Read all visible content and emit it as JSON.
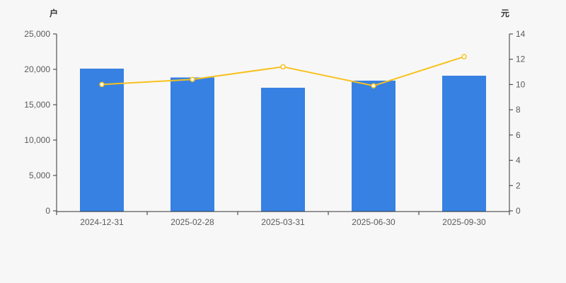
{
  "chart": {
    "left_unit": "户",
    "right_unit": "元"
  },
  "colors": {
    "background": "#f7f7f7",
    "bar": "#3781e3",
    "line": "#f8c11c",
    "marker_fill": "#ffffff",
    "axis": "#333333",
    "tick_text": "#5a5a5a"
  },
  "chart_data": {
    "type": "bar",
    "categories": [
      "2024-12-31",
      "2025-02-28",
      "2025-03-31",
      "2025-06-30",
      "2025-09-30"
    ],
    "series": [
      {
        "name": "bar-series",
        "type": "bar",
        "axis": "left",
        "color": "#3781e3",
        "values": [
          20100,
          18850,
          17400,
          18400,
          19100
        ]
      },
      {
        "name": "line-series",
        "type": "line",
        "axis": "right",
        "color": "#f8c11c",
        "values": [
          10.0,
          10.4,
          11.4,
          9.9,
          12.2
        ]
      }
    ],
    "left_axis": {
      "unit": "户",
      "min": 0,
      "max": 25000,
      "tick_step": 5000,
      "tick_labels": [
        "0",
        "5,000",
        "10,000",
        "15,000",
        "20,000",
        "25,000"
      ]
    },
    "right_axis": {
      "unit": "元",
      "min": 0,
      "max": 14,
      "tick_step": 2,
      "tick_labels": [
        "0",
        "2",
        "4",
        "6",
        "8",
        "10",
        "12",
        "14"
      ]
    },
    "grid": false,
    "legend": "none",
    "title": ""
  }
}
